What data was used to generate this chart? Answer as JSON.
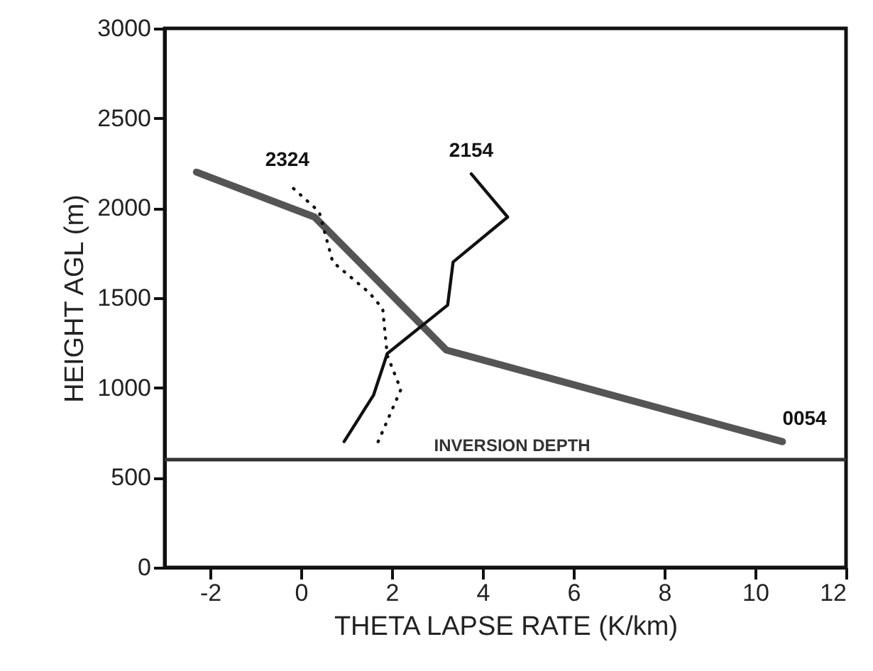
{
  "chart_data": {
    "type": "line",
    "xlabel": "THETA LAPSE RATE (K/km)",
    "ylabel": "HEIGHT AGL (m)",
    "xlim": [
      -3,
      12
    ],
    "xticks": [
      -2,
      0,
      2,
      4,
      6,
      8,
      10,
      12
    ],
    "ylim": [
      0,
      3000
    ],
    "yticks": [
      0,
      500,
      1000,
      1500,
      2000,
      2500,
      3000
    ],
    "series": [
      {
        "name": "0054",
        "color": "#555555",
        "line_style": "solid",
        "x": [
          10.6,
          3.2,
          0.3,
          -2.3
        ],
        "values": [
          700,
          1210,
          1950,
          2200
        ]
      },
      {
        "name": "2154",
        "color": "#111111",
        "line_style": "solid",
        "x": [
          0.95,
          1.6,
          1.9,
          3.23,
          3.35,
          4.55,
          3.75
        ],
        "values": [
          700,
          960,
          1190,
          1460,
          1700,
          1950,
          2190
        ]
      },
      {
        "name": "2324",
        "color": "#111111",
        "line_style": "dotted",
        "x": [
          1.7,
          2.2,
          1.9,
          1.8,
          1.5,
          0.7,
          0.4,
          -0.3
        ],
        "values": [
          700,
          990,
          1180,
          1440,
          1530,
          1700,
          1980,
          2140
        ]
      }
    ],
    "ref_lines": [
      {
        "axis": "y",
        "value": 600,
        "label": "INVERSION DEPTH",
        "color": "#333333"
      }
    ],
    "grid": false,
    "legend": false,
    "marker": "none"
  }
}
